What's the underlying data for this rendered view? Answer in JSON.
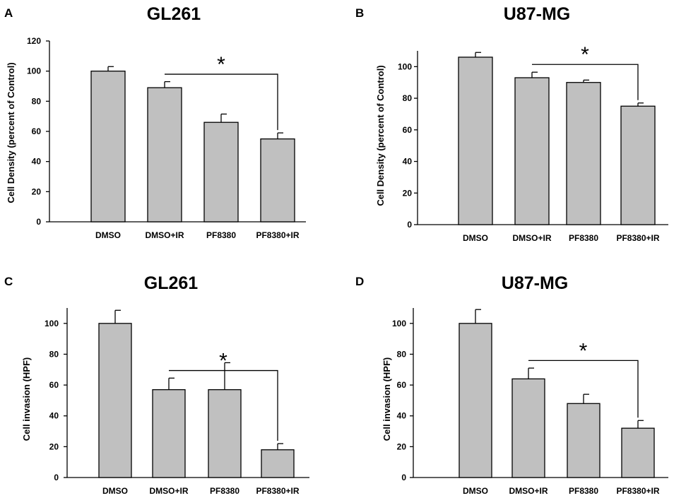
{
  "chart_data": [
    {
      "panel": "A",
      "type": "bar",
      "title": "GL261",
      "ylabel": "Cell Density (percent of Control)",
      "xlabel": "",
      "categories": [
        "DMSO",
        "DMSO+IR",
        "PF8380",
        "PF8380+IR"
      ],
      "values": [
        100,
        89,
        66,
        55
      ],
      "errors": [
        3,
        4,
        5.5,
        4
      ],
      "ylim": [
        0,
        120
      ],
      "yticks": [
        0,
        20,
        40,
        60,
        80,
        100,
        120
      ],
      "significance": {
        "from": "DMSO+IR",
        "to": "PF8380+IR",
        "label": "*"
      }
    },
    {
      "panel": "B",
      "type": "bar",
      "title": "U87-MG",
      "ylabel": "Cell Density (percent of Control)",
      "xlabel": "",
      "categories": [
        "DMSO",
        "DMSO+IR",
        "PF8380",
        "PF8380+IR"
      ],
      "values": [
        106,
        93,
        90,
        75
      ],
      "errors": [
        3,
        3.5,
        1.5,
        2
      ],
      "ylim": [
        0,
        110
      ],
      "yticks": [
        0,
        20,
        40,
        60,
        80,
        100
      ],
      "significance": {
        "from": "DMSO+IR",
        "to": "PF8380+IR",
        "label": "*"
      }
    },
    {
      "panel": "C",
      "type": "bar",
      "title": "GL261",
      "ylabel": "Cell invasion (HPF)",
      "xlabel": "",
      "categories": [
        "DMSO",
        "DMSO+IR",
        "PF8380",
        "PF8380+IR"
      ],
      "values": [
        100,
        57,
        57,
        18
      ],
      "errors": [
        8.5,
        7.5,
        17.5,
        4
      ],
      "ylim": [
        0,
        110
      ],
      "yticks": [
        0,
        20,
        40,
        60,
        80,
        100
      ],
      "significance": {
        "from": "DMSO+IR",
        "to": "PF8380+IR",
        "label": "*"
      }
    },
    {
      "panel": "D",
      "type": "bar",
      "title": "U87-MG",
      "ylabel": "Cell invasion (HPF)",
      "xlabel": "",
      "categories": [
        "DMSO",
        "DMSO+IR",
        "PF8380",
        "PF8380+IR"
      ],
      "values": [
        100,
        64,
        48,
        32
      ],
      "errors": [
        9,
        7,
        6,
        5
      ],
      "ylim": [
        0,
        110
      ],
      "yticks": [
        0,
        20,
        40,
        60,
        80,
        100
      ],
      "significance": {
        "from": "DMSO+IR",
        "to": "PF8380+IR",
        "label": "*"
      }
    }
  ]
}
